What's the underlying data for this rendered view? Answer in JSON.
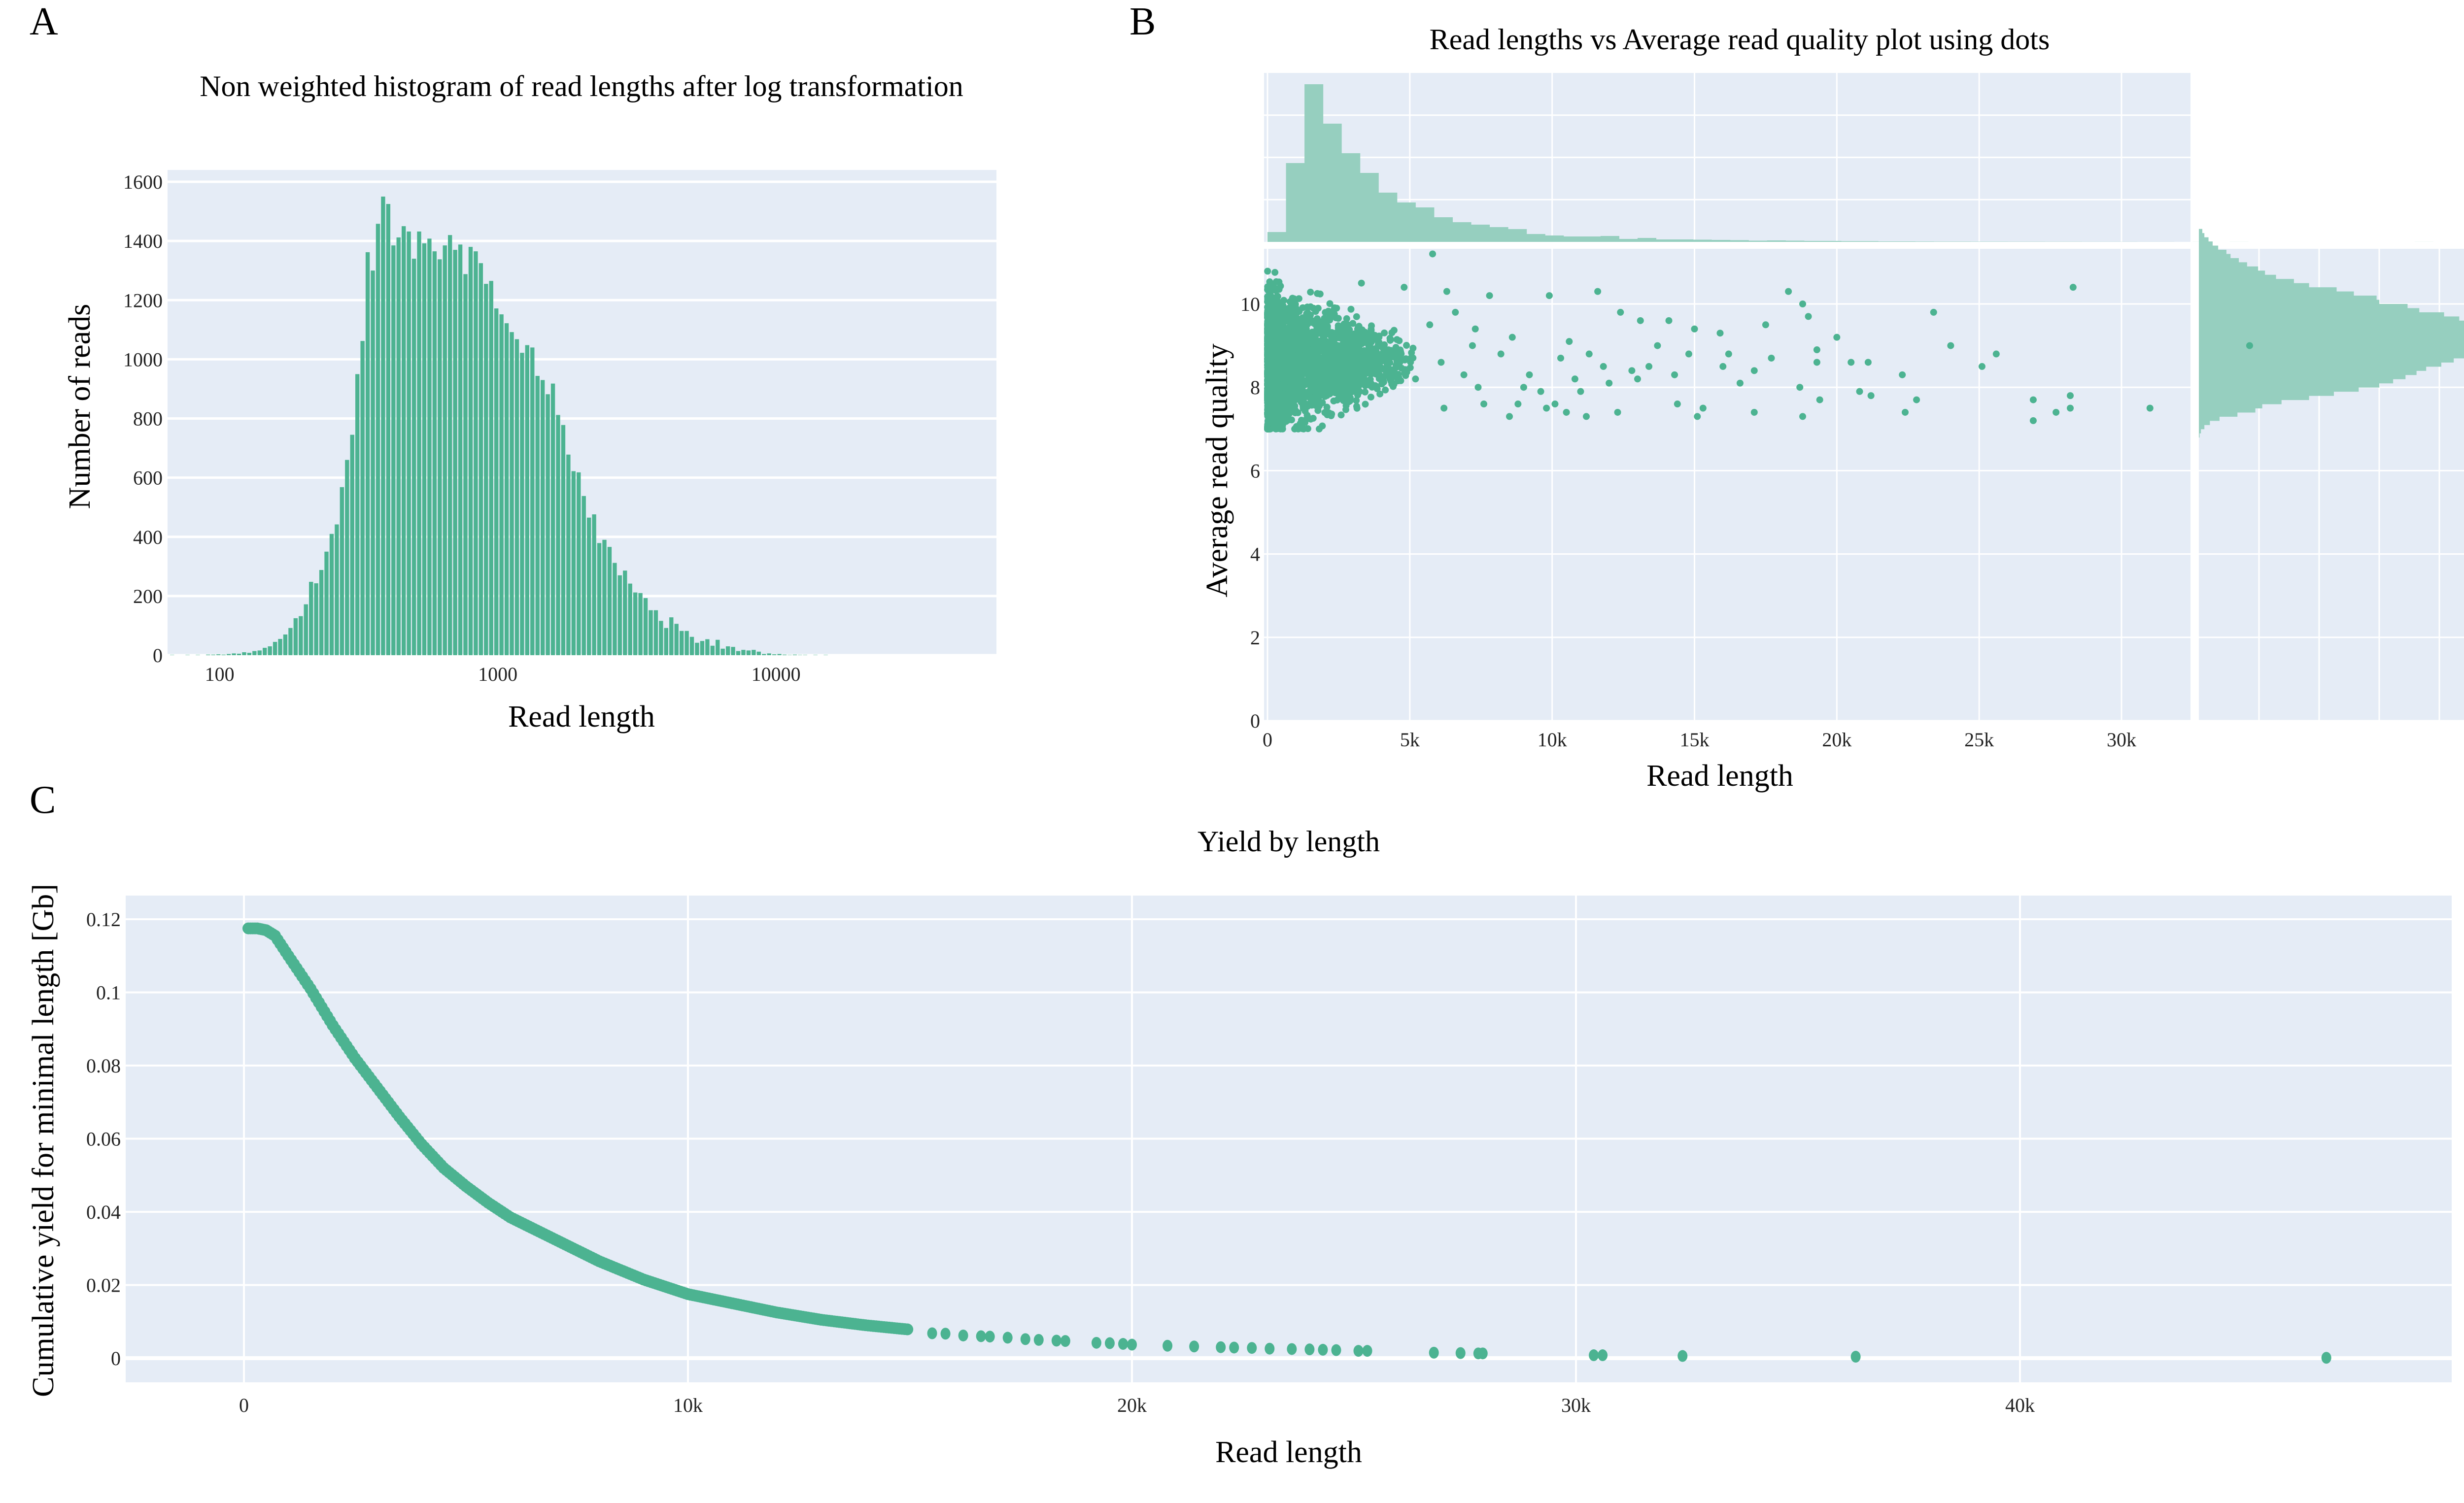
{
  "panels": {
    "a": {
      "letter": "A"
    },
    "b": {
      "letter": "B"
    },
    "c": {
      "letter": "C"
    }
  },
  "colors": {
    "plot_bg": "#e5ecf6",
    "grid": "#ffffff",
    "marker": "#4cb391",
    "marginal": "#96cfbf"
  },
  "chart_data": [
    {
      "id": "A",
      "type": "bar",
      "title": "Non weighted histogram of read lengths after log transformation",
      "xlabel": "Read length",
      "ylabel": "Number of reads",
      "xscale": "log",
      "xlim": [
        65,
        62000
      ],
      "ylim": [
        0,
        1640
      ],
      "xticks": [
        {
          "v": 100,
          "label": "100"
        },
        {
          "v": 1000,
          "label": "1000"
        },
        {
          "v": 10000,
          "label": "10000"
        }
      ],
      "yticks": [
        {
          "v": 0,
          "label": "0"
        },
        {
          "v": 200,
          "label": "200"
        },
        {
          "v": 400,
          "label": "400"
        },
        {
          "v": 600,
          "label": "600"
        },
        {
          "v": 800,
          "label": "800"
        },
        {
          "v": 1000,
          "label": "1000"
        },
        {
          "v": 1200,
          "label": "1200"
        },
        {
          "v": 1400,
          "label": "1400"
        },
        {
          "v": 1600,
          "label": "1600"
        }
      ],
      "grid": true,
      "log10_bin_start": 1.82,
      "log10_bin_width": 0.0185,
      "values": [
        1,
        0,
        0,
        1,
        0,
        1,
        0,
        2,
        2,
        3,
        2,
        4,
        6,
        5,
        10,
        8,
        14,
        16,
        25,
        30,
        45,
        55,
        70,
        92,
        125,
        132,
        172,
        248,
        243,
        288,
        350,
        410,
        442,
        568,
        660,
        745,
        950,
        1062,
        1362,
        1300,
        1458,
        1550,
        1525,
        1385,
        1412,
        1450,
        1432,
        1340,
        1432,
        1392,
        1408,
        1365,
        1338,
        1385,
        1420,
        1370,
        1388,
        1288,
        1380,
        1365,
        1325,
        1255,
        1265,
        1172,
        1152,
        1122,
        1092,
        1068,
        1022,
        1048,
        1040,
        944,
        930,
        882,
        918,
        812,
        778,
        678,
        622,
        618,
        538,
        465,
        476,
        379,
        390,
        366,
        312,
        270,
        286,
        242,
        212,
        210,
        193,
        152,
        152,
        116,
        92,
        128,
        106,
        82,
        82,
        62,
        42,
        48,
        54,
        32,
        52,
        22,
        30,
        28,
        14,
        18,
        16,
        18,
        12,
        4,
        6,
        3,
        4,
        2,
        1,
        2,
        1,
        1,
        0,
        1,
        0,
        1
      ]
    },
    {
      "id": "B",
      "type": "scatter",
      "title": "Read lengths vs Average read quality plot using dots",
      "xlabel": "Read length",
      "ylabel": "Average read quality",
      "xlim": [
        0,
        34500
      ],
      "ylim": [
        0,
        11.25
      ],
      "xticks": [
        {
          "v": 0,
          "label": "0"
        },
        {
          "v": 5000,
          "label": "5k"
        },
        {
          "v": 10000,
          "label": "10k"
        },
        {
          "v": 15000,
          "label": "15k"
        },
        {
          "v": 20000,
          "label": "20k"
        },
        {
          "v": 25000,
          "label": "25k"
        },
        {
          "v": 30000,
          "label": "30k"
        }
      ],
      "yticks": [
        {
          "v": 0,
          "label": "0"
        },
        {
          "v": 2,
          "label": "2"
        },
        {
          "v": 4,
          "label": "4"
        },
        {
          "v": 6,
          "label": "6"
        },
        {
          "v": 8,
          "label": "8"
        },
        {
          "v": 10,
          "label": "10"
        }
      ],
      "grid": true,
      "dense_region": {
        "x_range": [
          0,
          4500
        ],
        "y_range": [
          6.9,
          11.2
        ],
        "y_center": 8.6
      },
      "points": [
        [
          5800,
          11.2
        ],
        [
          3300,
          10.5
        ],
        [
          4800,
          10.4
        ],
        [
          6300,
          10.3
        ],
        [
          7800,
          10.2
        ],
        [
          11600,
          10.3
        ],
        [
          18300,
          10.3
        ],
        [
          28300,
          10.4
        ],
        [
          9900,
          10.2
        ],
        [
          18800,
          10.0
        ],
        [
          12400,
          9.8
        ],
        [
          23400,
          9.8
        ],
        [
          19000,
          9.7
        ],
        [
          13100,
          9.6
        ],
        [
          14100,
          9.6
        ],
        [
          15000,
          9.4
        ],
        [
          15900,
          9.3
        ],
        [
          8600,
          9.2
        ],
        [
          20000,
          9.2
        ],
        [
          17500,
          9.5
        ],
        [
          24000,
          9.0
        ],
        [
          10600,
          9.1
        ],
        [
          13700,
          9.0
        ],
        [
          16200,
          8.8
        ],
        [
          19300,
          8.9
        ],
        [
          20500,
          8.6
        ],
        [
          21100,
          8.6
        ],
        [
          25600,
          8.8
        ],
        [
          25100,
          8.5
        ],
        [
          34500,
          9.0
        ],
        [
          17100,
          8.4
        ],
        [
          22300,
          8.3
        ],
        [
          19300,
          8.6
        ],
        [
          11800,
          8.5
        ],
        [
          12800,
          8.4
        ],
        [
          14300,
          8.3
        ],
        [
          16600,
          8.1
        ],
        [
          18700,
          8.0
        ],
        [
          20800,
          7.9
        ],
        [
          21200,
          7.8
        ],
        [
          22800,
          7.7
        ],
        [
          19400,
          7.7
        ],
        [
          14400,
          7.6
        ],
        [
          15300,
          7.5
        ],
        [
          12300,
          7.4
        ],
        [
          11200,
          7.3
        ],
        [
          10500,
          7.4
        ],
        [
          17100,
          7.4
        ],
        [
          18800,
          7.3
        ],
        [
          15100,
          7.3
        ],
        [
          9800,
          7.5
        ],
        [
          22400,
          7.4
        ],
        [
          26900,
          7.7
        ],
        [
          28200,
          7.8
        ],
        [
          28200,
          7.5
        ],
        [
          27700,
          7.4
        ],
        [
          26900,
          7.2
        ],
        [
          31000,
          7.5
        ],
        [
          9600,
          7.9
        ],
        [
          10800,
          8.2
        ],
        [
          13400,
          8.5
        ],
        [
          7600,
          7.6
        ],
        [
          8500,
          7.3
        ],
        [
          11000,
          7.9
        ],
        [
          12000,
          8.1
        ],
        [
          9000,
          8.0
        ],
        [
          10300,
          8.7
        ],
        [
          11300,
          8.8
        ],
        [
          13000,
          8.2
        ],
        [
          14800,
          8.8
        ],
        [
          16000,
          8.5
        ],
        [
          17700,
          8.7
        ],
        [
          7200,
          9.0
        ],
        [
          8200,
          8.8
        ],
        [
          9200,
          8.3
        ],
        [
          6900,
          8.3
        ],
        [
          7400,
          8.0
        ],
        [
          8800,
          7.6
        ],
        [
          10100,
          7.6
        ],
        [
          6600,
          9.8
        ],
        [
          5700,
          9.5
        ],
        [
          7300,
          9.4
        ],
        [
          6100,
          8.6
        ],
        [
          5200,
          8.2
        ],
        [
          6200,
          7.5
        ]
      ],
      "top_marginal": {
        "bin_width": 650,
        "values": [
          2,
          16,
          32,
          24,
          18,
          14,
          10,
          8,
          7,
          5,
          4,
          3.5,
          3,
          2.6,
          1.6,
          1.3,
          1.1,
          1.1,
          1.2,
          0.6,
          0.8,
          0.5,
          0.5,
          0.45,
          0.4,
          0.35,
          0.25,
          0.3,
          0.25,
          0.2,
          0.2,
          0.15,
          0.15,
          0.1,
          0.1,
          0.08,
          0.06,
          0.06,
          0.05,
          0.05,
          0.04,
          0.04,
          0.03,
          0.03,
          0.02,
          0.02,
          0.02,
          0.01,
          0.01,
          0,
          0.01,
          0,
          0.01,
          0,
          0,
          0,
          0,
          0,
          0,
          0,
          0,
          0,
          0.01
        ]
      },
      "right_marginal": {
        "y_start": 6.8,
        "bin_width": 0.1,
        "values": [
          1,
          3,
          8,
          16,
          30,
          56,
          82,
          92,
          120,
          160,
          196,
          232,
          262,
          282,
          300,
          316,
          330,
          352,
          370,
          392,
          404,
          434,
          440,
          424,
          432,
          420,
          405,
          386,
          378,
          356,
          320,
          303,
          262,
          258,
          225,
          200,
          160,
          138,
          112,
          96,
          86,
          70,
          58,
          46,
          40,
          28,
          20,
          14,
          8,
          5
        ]
      }
    },
    {
      "id": "C",
      "type": "scatter",
      "title": "Yield by length",
      "xlabel": "Read length",
      "ylabel": "Cumulative yield for minimal length [Gb]",
      "xlim": [
        -2700,
        49000
      ],
      "ylim": [
        -0.0085,
        0.1255
      ],
      "xticks": [
        {
          "v": 0,
          "label": "0"
        },
        {
          "v": 10000,
          "label": "10k"
        },
        {
          "v": 20000,
          "label": "20k"
        },
        {
          "v": 30000,
          "label": "30k"
        },
        {
          "v": 40000,
          "label": "40k"
        }
      ],
      "yticks": [
        {
          "v": 0,
          "label": "0"
        },
        {
          "v": 0.02,
          "label": "0.02"
        },
        {
          "v": 0.04,
          "label": "0.04"
        },
        {
          "v": 0.06,
          "label": "0.06"
        },
        {
          "v": 0.08,
          "label": "0.08"
        },
        {
          "v": 0.1,
          "label": "0.1"
        },
        {
          "v": 0.12,
          "label": "0.12"
        }
      ],
      "grid": true,
      "curve": [
        [
          100,
          0.1175
        ],
        [
          300,
          0.1175
        ],
        [
          500,
          0.117
        ],
        [
          700,
          0.1155
        ],
        [
          1000,
          0.11
        ],
        [
          1500,
          0.101
        ],
        [
          2000,
          0.091
        ],
        [
          2500,
          0.082
        ],
        [
          3000,
          0.074
        ],
        [
          3500,
          0.066
        ],
        [
          4000,
          0.0585
        ],
        [
          4500,
          0.052
        ],
        [
          5000,
          0.047
        ],
        [
          5500,
          0.0425
        ],
        [
          6000,
          0.0385
        ],
        [
          7000,
          0.0325
        ],
        [
          8000,
          0.0265
        ],
        [
          9000,
          0.0215
        ],
        [
          10000,
          0.0175
        ],
        [
          11000,
          0.015
        ],
        [
          12000,
          0.0125
        ],
        [
          13000,
          0.0105
        ],
        [
          14000,
          0.009
        ],
        [
          15000,
          0.0078
        ]
      ],
      "points": [
        [
          15500,
          0.0068
        ],
        [
          15800,
          0.0067
        ],
        [
          16200,
          0.0062
        ],
        [
          16600,
          0.006
        ],
        [
          16800,
          0.0059
        ],
        [
          17200,
          0.0056
        ],
        [
          17600,
          0.0052
        ],
        [
          17900,
          0.005
        ],
        [
          18300,
          0.0048
        ],
        [
          18500,
          0.0047
        ],
        [
          19200,
          0.0042
        ],
        [
          19500,
          0.0041
        ],
        [
          19800,
          0.0039
        ],
        [
          20000,
          0.0037
        ],
        [
          20800,
          0.0034
        ],
        [
          21400,
          0.0032
        ],
        [
          22000,
          0.003
        ],
        [
          22300,
          0.0029
        ],
        [
          22700,
          0.0028
        ],
        [
          23100,
          0.0026
        ],
        [
          23600,
          0.0025
        ],
        [
          24000,
          0.0024
        ],
        [
          24300,
          0.0023
        ],
        [
          24600,
          0.0022
        ],
        [
          25100,
          0.002
        ],
        [
          25300,
          0.002
        ],
        [
          26800,
          0.0015
        ],
        [
          27400,
          0.0014
        ],
        [
          27800,
          0.0013
        ],
        [
          27900,
          0.0013
        ],
        [
          30400,
          0.0008
        ],
        [
          30600,
          0.0008
        ],
        [
          32400,
          0.0006
        ],
        [
          36300,
          0.0004
        ],
        [
          46900,
          0.0001
        ]
      ]
    }
  ]
}
